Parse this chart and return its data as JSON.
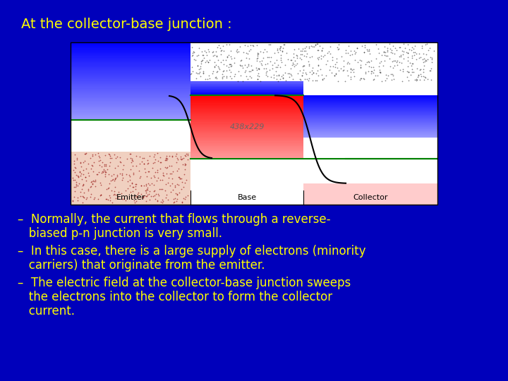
{
  "background_color": "#0000bb",
  "title": "At the collector-base junction :",
  "title_color": "#ffff00",
  "title_fontsize": 14,
  "bullet_color": "#ffff00",
  "bullet_fontsize": 12,
  "bullet1_line1": "–  Normally, the current that flows through a reverse-",
  "bullet1_line2": "   biased p-n junction is very small.",
  "bullet2_line1": "–  In this case, there is a large supply of electrons (minority",
  "bullet2_line2": "   carriers) that originate from the emitter.",
  "bullet3_line1": "–  The electric field at the collector-base junction sweeps",
  "bullet3_line2": "   the electrons into the collector to form the collector",
  "bullet3_line3": "   current.",
  "img_text": "438x229"
}
